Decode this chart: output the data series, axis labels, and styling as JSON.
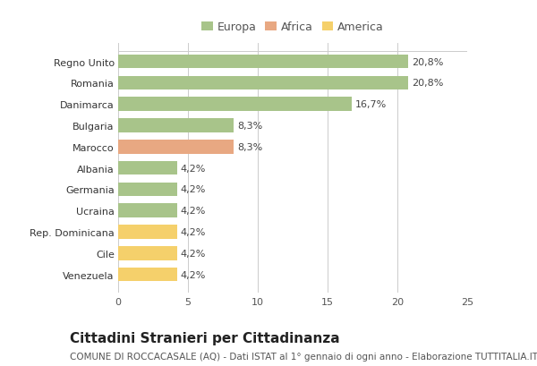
{
  "categories": [
    "Venezuela",
    "Cile",
    "Rep. Dominicana",
    "Ucraina",
    "Germania",
    "Albania",
    "Marocco",
    "Bulgaria",
    "Danimarca",
    "Romania",
    "Regno Unito"
  ],
  "values": [
    4.2,
    4.2,
    4.2,
    4.2,
    4.2,
    4.2,
    8.3,
    8.3,
    16.7,
    20.8,
    20.8
  ],
  "labels": [
    "4,2%",
    "4,2%",
    "4,2%",
    "4,2%",
    "4,2%",
    "4,2%",
    "8,3%",
    "8,3%",
    "16,7%",
    "20,8%",
    "20,8%"
  ],
  "colors": [
    "#f5d06b",
    "#f5d06b",
    "#f5d06b",
    "#a8c48a",
    "#a8c48a",
    "#a8c48a",
    "#e8a882",
    "#a8c48a",
    "#a8c48a",
    "#a8c48a",
    "#a8c48a"
  ],
  "legend": [
    {
      "label": "Europa",
      "color": "#a8c48a"
    },
    {
      "label": "Africa",
      "color": "#e8a882"
    },
    {
      "label": "America",
      "color": "#f5d06b"
    }
  ],
  "title": "Cittadini Stranieri per Cittadinanza",
  "subtitle": "COMUNE DI ROCCACASALE (AQ) - Dati ISTAT al 1° gennaio di ogni anno - Elaborazione TUTTITALIA.IT",
  "xlim": [
    0,
    25
  ],
  "xticks": [
    0,
    5,
    10,
    15,
    20,
    25
  ],
  "background_color": "#ffffff",
  "grid_color": "#cccccc",
  "bar_height": 0.65,
  "title_fontsize": 11,
  "subtitle_fontsize": 7.5,
  "label_fontsize": 8,
  "tick_fontsize": 8,
  "legend_fontsize": 9
}
